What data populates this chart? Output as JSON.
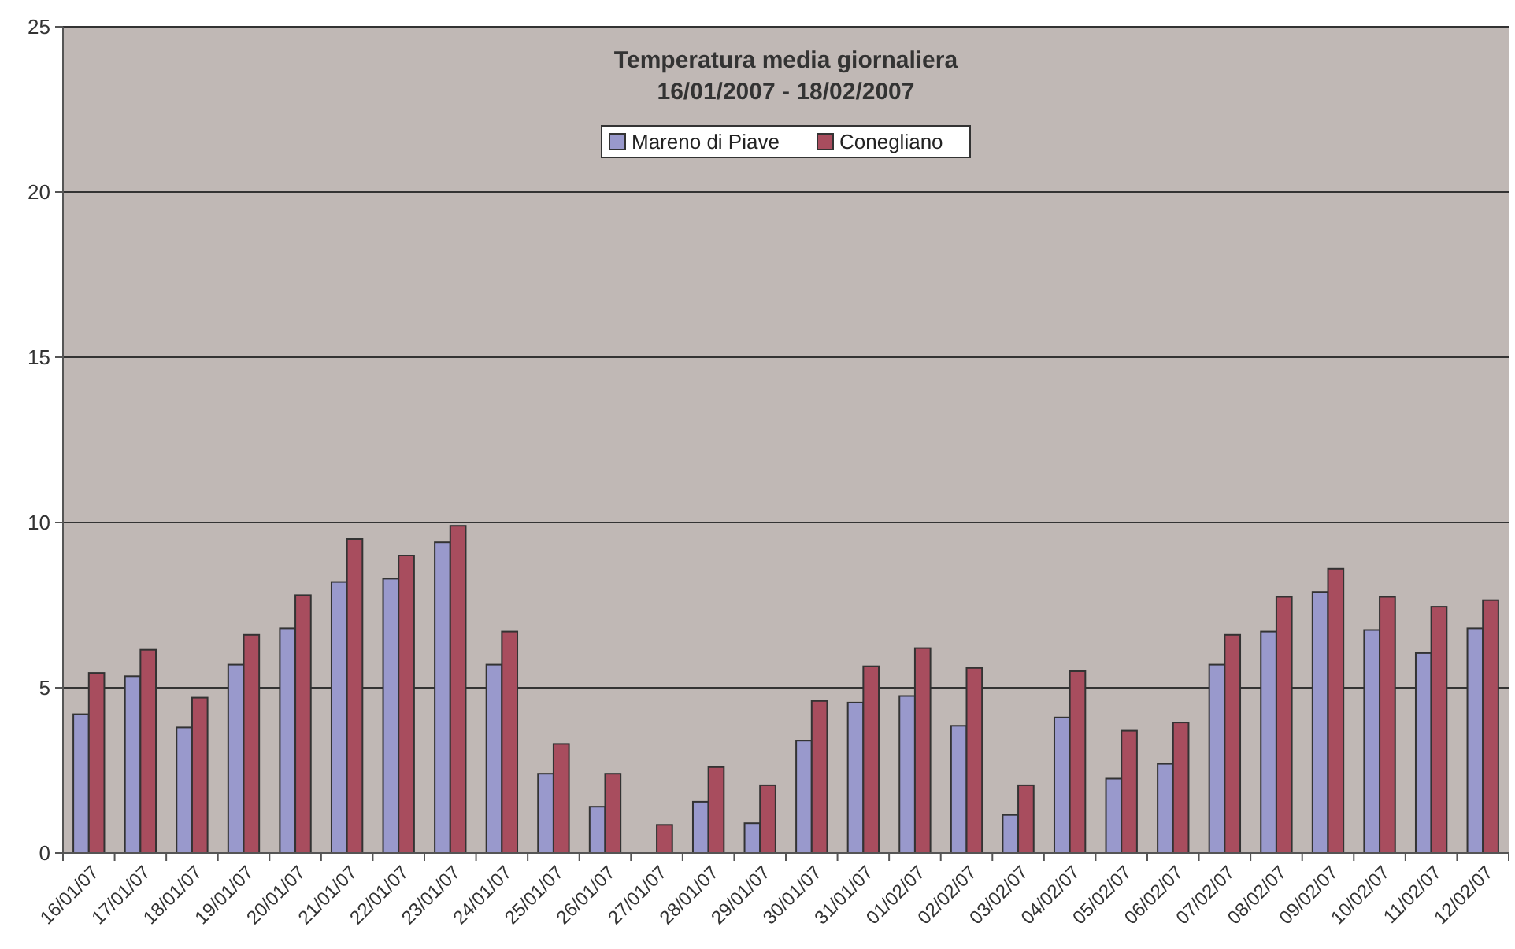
{
  "chart_data": {
    "type": "bar",
    "title": "Temperatura media giornaliera\n16/01/2007 - 18/02/2007",
    "categories": [
      "16/01/07",
      "17/01/07",
      "18/01/07",
      "19/01/07",
      "20/01/07",
      "21/01/07",
      "22/01/07",
      "23/01/07",
      "24/01/07",
      "25/01/07",
      "26/01/07",
      "27/01/07",
      "28/01/07",
      "29/01/07",
      "30/01/07",
      "31/01/07",
      "01/02/07",
      "02/02/07",
      "03/02/07",
      "04/02/07",
      "05/02/07",
      "06/02/07",
      "07/02/07",
      "08/02/07",
      "09/02/07",
      "10/02/07",
      "11/02/07",
      "12/02/07"
    ],
    "series": [
      {
        "name": "Mareno di Piave",
        "color": "#9999cc",
        "values": [
          4.2,
          5.35,
          3.8,
          5.7,
          6.8,
          8.2,
          8.3,
          9.4,
          5.7,
          2.4,
          1.4,
          null,
          1.55,
          0.9,
          3.4,
          4.55,
          4.75,
          3.85,
          1.15,
          4.1,
          2.25,
          2.7,
          5.7,
          6.7,
          7.9,
          6.75,
          6.05,
          6.8
        ]
      },
      {
        "name": "Conegliano",
        "color": "#a84d5e",
        "values": [
          5.45,
          6.15,
          4.7,
          6.6,
          7.8,
          9.5,
          9.0,
          9.9,
          6.7,
          3.3,
          2.4,
          0.85,
          2.6,
          2.05,
          4.6,
          5.65,
          6.2,
          5.6,
          2.05,
          5.5,
          3.7,
          3.95,
          6.6,
          7.75,
          8.6,
          7.75,
          7.45,
          7.65
        ]
      }
    ],
    "ylim": [
      0,
      25
    ],
    "yticks": [
      0,
      5,
      10,
      15,
      20,
      25
    ],
    "grid": "y",
    "legend": "top"
  }
}
